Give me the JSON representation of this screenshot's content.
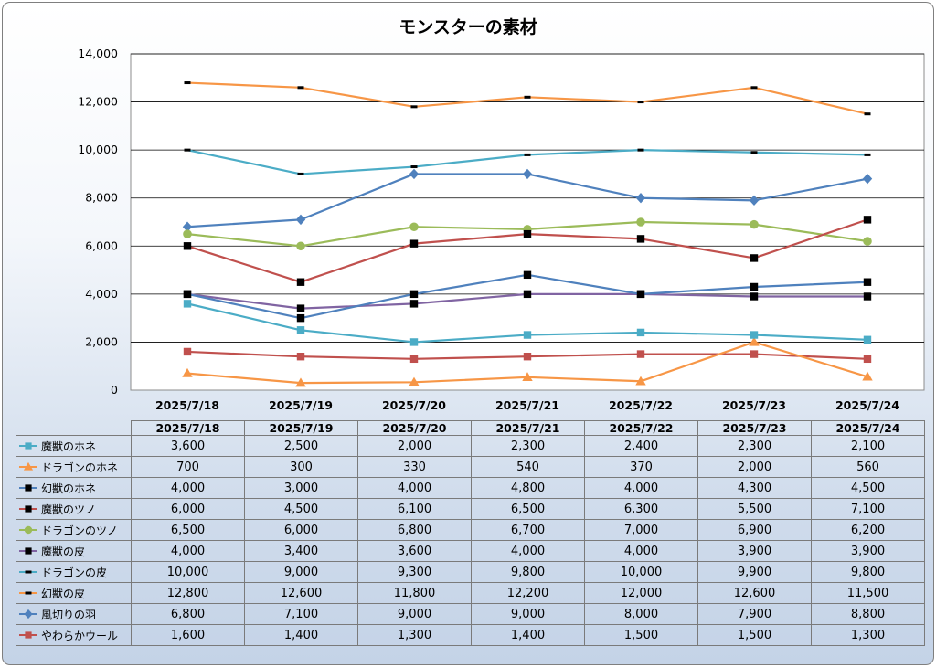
{
  "chart_data": {
    "type": "line",
    "title": "モンスターの素材",
    "categories": [
      "2025/7/18",
      "2025/7/19",
      "2025/7/20",
      "2025/7/21",
      "2025/7/22",
      "2025/7/23",
      "2025/7/24"
    ],
    "ylim": [
      0,
      14000
    ],
    "yticks": [
      0,
      2000,
      4000,
      6000,
      8000,
      10000,
      12000,
      14000
    ],
    "ytick_labels": [
      "0",
      "2,000",
      "4,000",
      "6,000",
      "8,000",
      "10,000",
      "12,000",
      "14,000"
    ],
    "grid": true,
    "legend": "data table",
    "series": [
      {
        "name": "魔獣のホネ",
        "color": "#4bacc6",
        "marker": "square",
        "values": [
          3600,
          2500,
          2000,
          2300,
          2400,
          2300,
          2100
        ],
        "labels": [
          "3,600",
          "2,500",
          "2,000",
          "2,300",
          "2,400",
          "2,300",
          "2,100"
        ]
      },
      {
        "name": "ドラゴンのホネ",
        "color": "#f79646",
        "marker": "triangle",
        "values": [
          700,
          300,
          330,
          540,
          370,
          2000,
          560
        ],
        "labels": [
          "700",
          "300",
          "330",
          "540",
          "370",
          "2,000",
          "560"
        ]
      },
      {
        "name": "幻獣のホネ",
        "color": "#4f81bd",
        "marker": "square-black",
        "values": [
          4000,
          3000,
          4000,
          4800,
          4000,
          4300,
          4500
        ],
        "labels": [
          "4,000",
          "3,000",
          "4,000",
          "4,800",
          "4,000",
          "4,300",
          "4,500"
        ]
      },
      {
        "name": "魔獣のツノ",
        "color": "#c0504d",
        "marker": "square-black",
        "values": [
          6000,
          4500,
          6100,
          6500,
          6300,
          5500,
          7100
        ],
        "labels": [
          "6,000",
          "4,500",
          "6,100",
          "6,500",
          "6,300",
          "5,500",
          "7,100"
        ]
      },
      {
        "name": "ドラゴンのツノ",
        "color": "#9bbb59",
        "marker": "circle",
        "values": [
          6500,
          6000,
          6800,
          6700,
          7000,
          6900,
          6200
        ],
        "labels": [
          "6,500",
          "6,000",
          "6,800",
          "6,700",
          "7,000",
          "6,900",
          "6,200"
        ]
      },
      {
        "name": "魔獣の皮",
        "color": "#8064a2",
        "marker": "square-black",
        "values": [
          4000,
          3400,
          3600,
          4000,
          4000,
          3900,
          3900
        ],
        "labels": [
          "4,000",
          "3,400",
          "3,600",
          "4,000",
          "4,000",
          "3,900",
          "3,900"
        ]
      },
      {
        "name": "ドラゴンの皮",
        "color": "#4bacc6",
        "marker": "dash",
        "values": [
          10000,
          9000,
          9300,
          9800,
          10000,
          9900,
          9800
        ],
        "labels": [
          "10,000",
          "9,000",
          "9,300",
          "9,800",
          "10,000",
          "9,900",
          "9,800"
        ]
      },
      {
        "name": "幻獣の皮",
        "color": "#f79646",
        "marker": "dash",
        "values": [
          12800,
          12600,
          11800,
          12200,
          12000,
          12600,
          11500
        ],
        "labels": [
          "12,800",
          "12,600",
          "11,800",
          "12,200",
          "12,000",
          "12,600",
          "11,500"
        ]
      },
      {
        "name": "風切りの羽",
        "color": "#4f81bd",
        "marker": "diamond",
        "values": [
          6800,
          7100,
          9000,
          9000,
          8000,
          7900,
          8800
        ],
        "labels": [
          "6,800",
          "7,100",
          "9,000",
          "9,000",
          "8,000",
          "7,900",
          "8,800"
        ]
      },
      {
        "name": "やわらかウール",
        "color": "#c0504d",
        "marker": "square",
        "values": [
          1600,
          1400,
          1300,
          1400,
          1500,
          1500,
          1300
        ],
        "labels": [
          "1,600",
          "1,400",
          "1,300",
          "1,400",
          "1,500",
          "1,500",
          "1,300"
        ]
      }
    ]
  }
}
